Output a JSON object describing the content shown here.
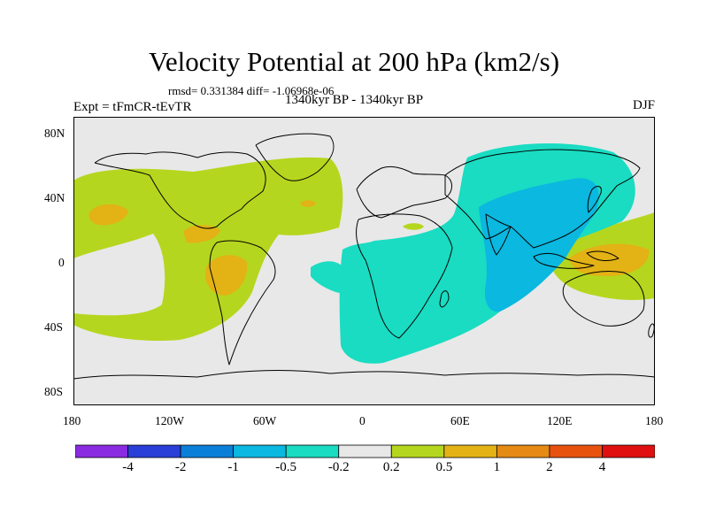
{
  "title": "Velocity Potential at 200 hPa (km2/s)",
  "stats_text": "rmsd= 0.331384 diff= -1.06968e-06",
  "left_label": "Expt = tFmCR-tEvTR",
  "center_label": "1340kyr BP - 1340kyr BP",
  "right_label": "DJF",
  "lat_ticks": [
    "80N",
    "40N",
    "0",
    "40S",
    "80S"
  ],
  "lon_ticks": [
    "180",
    "120W",
    "60W",
    "0",
    "60E",
    "120E",
    "180"
  ],
  "colorbar": {
    "labels": [
      "-4",
      "-2",
      "-1",
      "-0.5",
      "-0.2",
      "0.2",
      "0.5",
      "1",
      "2",
      "4"
    ],
    "colors": [
      "#8a2be2",
      "#2a3ed8",
      "#0a7fd8",
      "#0ab8e0",
      "#19dcc2",
      "#e8e8e8",
      "#b5d61e",
      "#e3b215",
      "#e58a14",
      "#e8520f",
      "#e01010"
    ]
  },
  "colors": {
    "ocean_background": "#e8e8e8",
    "positive_weak": "#b5d61e",
    "positive_mid": "#e3b215",
    "negative_weak": "#19dcc2",
    "negative_mid": "#0ab8e0"
  }
}
